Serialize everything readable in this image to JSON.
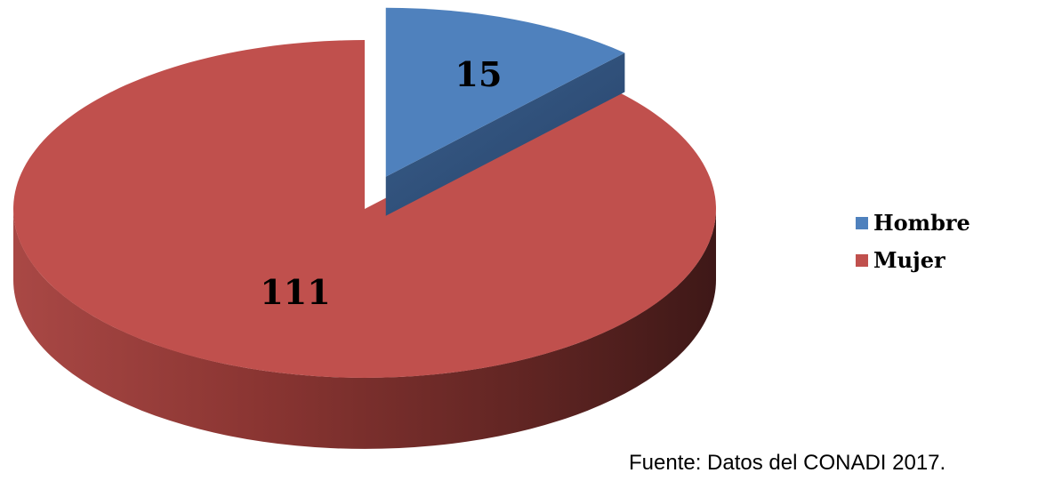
{
  "chart_data": {
    "type": "pie",
    "variant": "3d-exploded",
    "title": "",
    "slices": [
      {
        "label": "Hombre",
        "value": 15,
        "color": "#4F81BD",
        "exploded": true
      },
      {
        "label": "Mujer",
        "value": 111,
        "color": "#C0504D",
        "exploded": false
      }
    ],
    "legend_position": "right",
    "data_labels": [
      "15",
      "111"
    ]
  },
  "source": "Fuente: Datos del CONADI 2017."
}
